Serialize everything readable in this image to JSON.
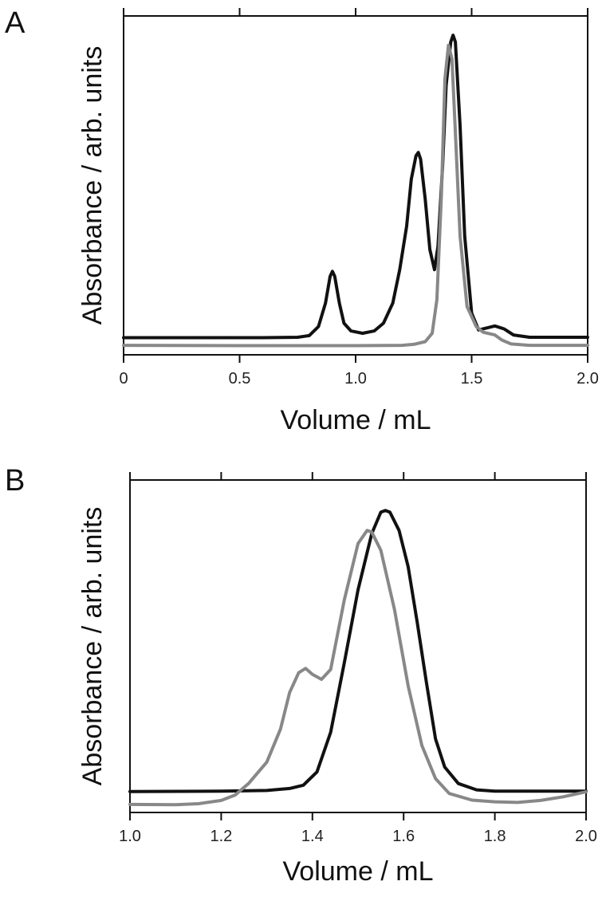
{
  "chart_data": [
    {
      "panel": "A",
      "type": "line",
      "xlabel": "Volume / mL",
      "ylabel": "Absorbance / arb. units",
      "xlim": [
        0,
        2.0
      ],
      "ylim": [
        0,
        1.0
      ],
      "x_ticks": [
        "0",
        "0.5",
        "1.0",
        "1.5",
        "2.0"
      ],
      "x_tick_values": [
        0,
        0.5,
        1.0,
        1.5,
        2.0
      ],
      "grid": false,
      "series": [
        {
          "color": "#111111",
          "points": [
            [
              0,
              0.087
            ],
            [
              0.3,
              0.087
            ],
            [
              0.6,
              0.087
            ],
            [
              0.75,
              0.088
            ],
            [
              0.8,
              0.093
            ],
            [
              0.84,
              0.12
            ],
            [
              0.87,
              0.19
            ],
            [
              0.89,
              0.27
            ],
            [
              0.9,
              0.285
            ],
            [
              0.91,
              0.27
            ],
            [
              0.93,
              0.19
            ],
            [
              0.95,
              0.13
            ],
            [
              0.98,
              0.107
            ],
            [
              1.03,
              0.1
            ],
            [
              1.08,
              0.107
            ],
            [
              1.12,
              0.13
            ],
            [
              1.16,
              0.19
            ],
            [
              1.19,
              0.29
            ],
            [
              1.22,
              0.42
            ],
            [
              1.24,
              0.56
            ],
            [
              1.26,
              0.63
            ],
            [
              1.27,
              0.64
            ],
            [
              1.28,
              0.62
            ],
            [
              1.3,
              0.5
            ],
            [
              1.32,
              0.35
            ],
            [
              1.34,
              0.29
            ],
            [
              1.355,
              0.36
            ],
            [
              1.375,
              0.6
            ],
            [
              1.39,
              0.84
            ],
            [
              1.41,
              0.97
            ],
            [
              1.42,
              0.99
            ],
            [
              1.43,
              0.97
            ],
            [
              1.45,
              0.72
            ],
            [
              1.47,
              0.39
            ],
            [
              1.5,
              0.16
            ],
            [
              1.53,
              0.11
            ],
            [
              1.56,
              0.115
            ],
            [
              1.6,
              0.122
            ],
            [
              1.64,
              0.113
            ],
            [
              1.68,
              0.095
            ],
            [
              1.75,
              0.088
            ],
            [
              2.0,
              0.088
            ]
          ]
        },
        {
          "color": "#888888",
          "points": [
            [
              0,
              0.064
            ],
            [
              0.5,
              0.063
            ],
            [
              1.0,
              0.063
            ],
            [
              1.2,
              0.064
            ],
            [
              1.25,
              0.067
            ],
            [
              1.3,
              0.075
            ],
            [
              1.33,
              0.1
            ],
            [
              1.35,
              0.2
            ],
            [
              1.37,
              0.52
            ],
            [
              1.385,
              0.86
            ],
            [
              1.4,
              0.96
            ],
            [
              1.415,
              0.92
            ],
            [
              1.43,
              0.7
            ],
            [
              1.45,
              0.39
            ],
            [
              1.48,
              0.18
            ],
            [
              1.52,
              0.12
            ],
            [
              1.55,
              0.103
            ],
            [
              1.6,
              0.095
            ],
            [
              1.63,
              0.08
            ],
            [
              1.67,
              0.068
            ],
            [
              1.75,
              0.064
            ],
            [
              2.0,
              0.064
            ]
          ]
        }
      ]
    },
    {
      "panel": "B",
      "type": "line",
      "xlabel": "Volume / mL",
      "ylabel": "Absorbance / arb. units",
      "xlim": [
        1.0,
        2.0
      ],
      "ylim": [
        0,
        1.0
      ],
      "x_ticks": [
        "1.0",
        "1.2",
        "1.4",
        "1.6",
        "1.8",
        "2.0"
      ],
      "x_tick_values": [
        1.0,
        1.2,
        1.4,
        1.6,
        1.8,
        2.0
      ],
      "grid": false,
      "series": [
        {
          "color": "#111111",
          "points": [
            [
              1.0,
              0.061
            ],
            [
              1.2,
              0.062
            ],
            [
              1.3,
              0.064
            ],
            [
              1.35,
              0.07
            ],
            [
              1.38,
              0.08
            ],
            [
              1.41,
              0.12
            ],
            [
              1.44,
              0.24
            ],
            [
              1.47,
              0.45
            ],
            [
              1.5,
              0.67
            ],
            [
              1.53,
              0.84
            ],
            [
              1.55,
              0.905
            ],
            [
              1.56,
              0.91
            ],
            [
              1.57,
              0.905
            ],
            [
              1.59,
              0.85
            ],
            [
              1.61,
              0.74
            ],
            [
              1.63,
              0.57
            ],
            [
              1.65,
              0.39
            ],
            [
              1.67,
              0.22
            ],
            [
              1.69,
              0.135
            ],
            [
              1.72,
              0.085
            ],
            [
              1.76,
              0.066
            ],
            [
              1.8,
              0.062
            ],
            [
              2.0,
              0.062
            ]
          ]
        },
        {
          "color": "#888888",
          "points": [
            [
              1.0,
              0.022
            ],
            [
              1.1,
              0.021
            ],
            [
              1.15,
              0.024
            ],
            [
              1.2,
              0.034
            ],
            [
              1.23,
              0.05
            ],
            [
              1.26,
              0.085
            ],
            [
              1.3,
              0.15
            ],
            [
              1.33,
              0.25
            ],
            [
              1.35,
              0.36
            ],
            [
              1.37,
              0.42
            ],
            [
              1.385,
              0.433
            ],
            [
              1.4,
              0.415
            ],
            [
              1.42,
              0.4
            ],
            [
              1.44,
              0.43
            ],
            [
              1.47,
              0.64
            ],
            [
              1.5,
              0.81
            ],
            [
              1.52,
              0.85
            ],
            [
              1.53,
              0.845
            ],
            [
              1.55,
              0.79
            ],
            [
              1.58,
              0.61
            ],
            [
              1.61,
              0.38
            ],
            [
              1.64,
              0.2
            ],
            [
              1.67,
              0.1
            ],
            [
              1.7,
              0.055
            ],
            [
              1.75,
              0.035
            ],
            [
              1.8,
              0.03
            ],
            [
              1.85,
              0.028
            ],
            [
              1.9,
              0.034
            ],
            [
              1.95,
              0.045
            ],
            [
              2.0,
              0.06
            ]
          ]
        }
      ]
    }
  ]
}
